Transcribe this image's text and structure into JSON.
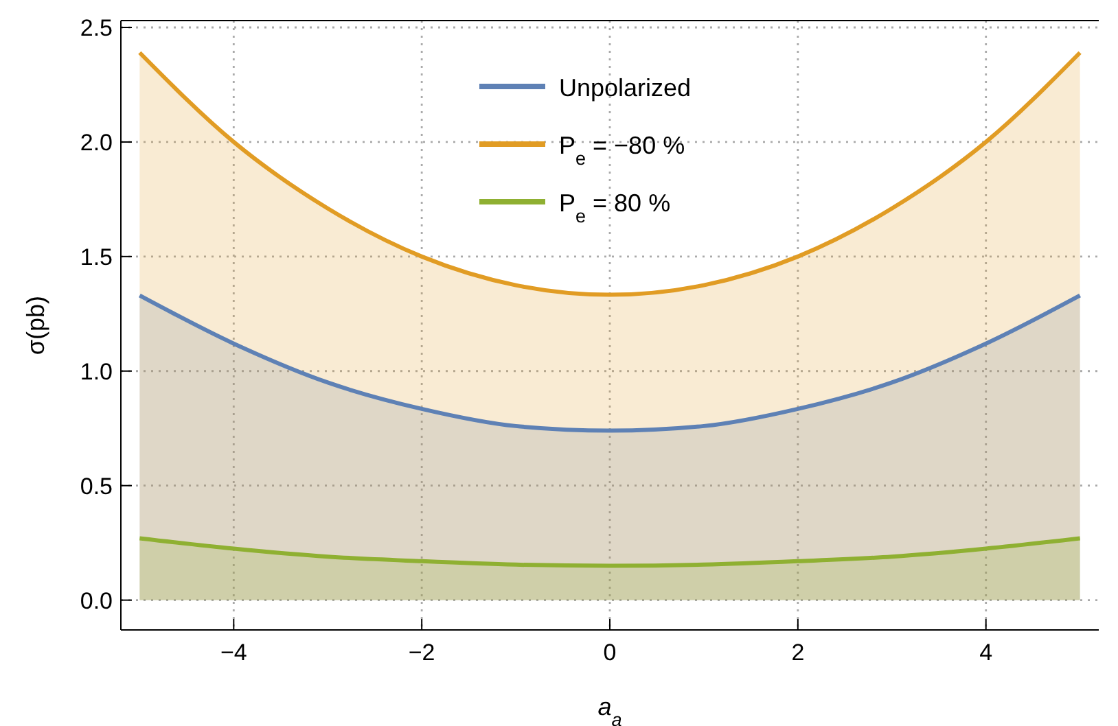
{
  "chart_data": {
    "type": "area",
    "xlabel": "a$_{a}$",
    "ylabel": "σ(pb)",
    "x": [
      -5,
      -4,
      -3,
      -2,
      -1,
      0,
      1,
      2,
      3,
      4,
      5
    ],
    "series": [
      {
        "name": "Unpolarized",
        "color": "#5e81b5",
        "values": [
          1.33,
          1.12,
          0.95,
          0.835,
          0.76,
          0.74,
          0.76,
          0.835,
          0.95,
          1.12,
          1.33
        ]
      },
      {
        "name": "P$_{e}$ = −80 %",
        "color": "#e19c24",
        "values": [
          2.39,
          2.0,
          1.71,
          1.5,
          1.375,
          1.333,
          1.375,
          1.5,
          1.71,
          2.0,
          2.39
        ]
      },
      {
        "name": "P$_{e}$ = 80 %",
        "color": "#8fb032",
        "values": [
          0.27,
          0.225,
          0.19,
          0.17,
          0.155,
          0.15,
          0.155,
          0.17,
          0.19,
          0.225,
          0.27
        ]
      }
    ],
    "xlim": [
      -5.2,
      5.2
    ],
    "ylim": [
      -0.13,
      2.53
    ],
    "xticks": [
      {
        "value": -4,
        "label": "−4"
      },
      {
        "value": -2,
        "label": "−2"
      },
      0,
      2,
      4
    ],
    "yticks": [
      {
        "value": 0,
        "label": "0.0"
      },
      {
        "value": 0.5,
        "label": "0.5"
      },
      {
        "value": 1,
        "label": "1.0"
      },
      {
        "value": 1.5,
        "label": "1.5"
      },
      {
        "value": 2,
        "label": "2.0"
      },
      {
        "value": 2.5,
        "label": "2.5"
      }
    ],
    "grid": true,
    "legend": "top",
    "line_style": "solid",
    "marker": "none"
  }
}
